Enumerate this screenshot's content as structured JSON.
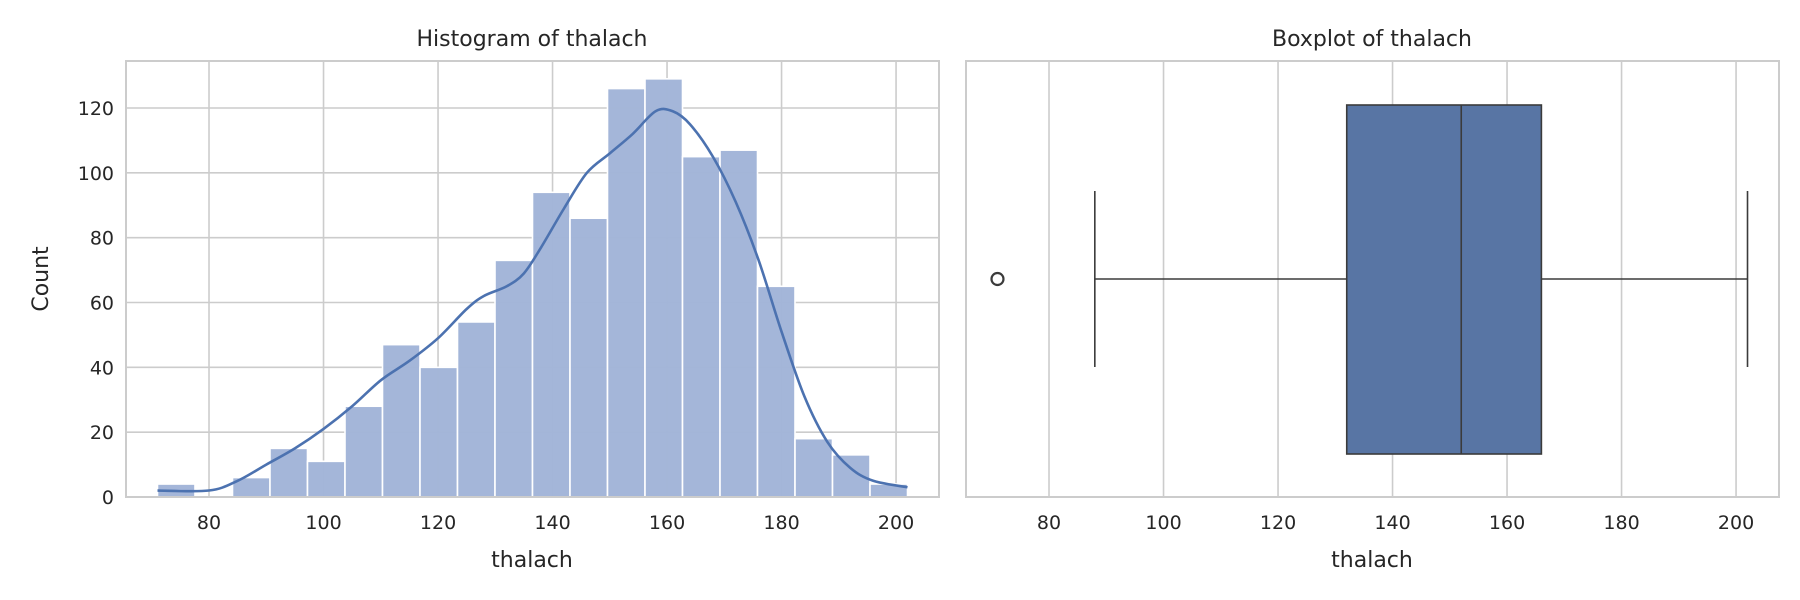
{
  "chart_data": [
    {
      "type": "bar",
      "subtype": "histogram",
      "title": "Histogram of thalach",
      "xlabel": "thalach",
      "ylabel": "Count",
      "xlim": [
        65.5,
        207.5
      ],
      "ylim": [
        0,
        134.5
      ],
      "xticks": [
        80,
        100,
        120,
        140,
        160,
        180,
        200
      ],
      "yticks": [
        0,
        20,
        40,
        60,
        80,
        100,
        120
      ],
      "grid": true,
      "bar_color": "#a2b5d8",
      "line_color": "#4c72b0",
      "bin_edges": [
        71,
        77.55,
        84.1,
        90.65,
        97.2,
        103.75,
        110.3,
        116.85,
        123.4,
        129.95,
        136.5,
        143.05,
        149.6,
        156.15,
        162.7,
        169.25,
        175.8,
        182.35,
        188.9,
        195.45,
        202
      ],
      "counts": [
        4,
        0,
        6,
        15,
        11,
        28,
        47,
        40,
        54,
        73,
        94,
        86,
        126,
        129,
        105,
        107,
        65,
        18,
        13,
        4
      ],
      "kde": {
        "x": [
          71,
          80,
          85,
          90,
          95,
          100,
          105,
          110,
          115,
          120,
          125,
          128,
          132,
          135,
          138,
          142,
          146,
          150,
          154,
          158,
          161,
          164,
          168,
          172,
          176,
          180,
          184,
          188,
          192,
          196,
          202
        ],
        "y": [
          2,
          2,
          5,
          10,
          15,
          21,
          28,
          36,
          42,
          49,
          58,
          62,
          65,
          69,
          77,
          89,
          100,
          106,
          112,
          119,
          119,
          115,
          105,
          91,
          73,
          51,
          31,
          17,
          9,
          5,
          3
        ]
      }
    },
    {
      "type": "boxplot",
      "title": "Boxplot of thalach",
      "xlabel": "thalach",
      "xlim": [
        65.5,
        207.5
      ],
      "xticks": [
        80,
        100,
        120,
        140,
        160,
        180,
        200
      ],
      "grid": true,
      "box_color": "#5875a4",
      "line_color": "#3b3b3b",
      "stats": {
        "whisker_low": 88,
        "q1": 132,
        "median": 152,
        "q3": 166,
        "whisker_high": 202,
        "outliers": [
          71
        ]
      }
    }
  ]
}
